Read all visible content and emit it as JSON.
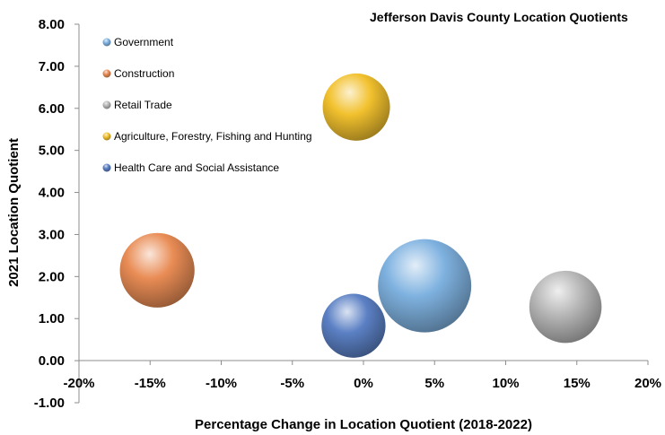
{
  "chart_data": {
    "type": "bubble",
    "title": "Jefferson Davis County Location Quotients",
    "xlabel": "Percentage Change in Location Quotient (2018-2022)",
    "ylabel": "2021 Location Quotient",
    "xlim": [
      -0.2,
      0.2
    ],
    "ylim": [
      -1.0,
      8.0
    ],
    "x_ticks": [
      "-20%",
      "-15%",
      "-10%",
      "-5%",
      "0%",
      "5%",
      "10%",
      "15%",
      "20%"
    ],
    "y_ticks": [
      "-1.00",
      "0.00",
      "1.00",
      "2.00",
      "3.00",
      "4.00",
      "5.00",
      "6.00",
      "7.00",
      "8.00"
    ],
    "grid": false,
    "legend_position": "top-left",
    "series": [
      {
        "name": "Government",
        "x": 0.043,
        "y": 1.78,
        "size": 1.0,
        "color": "#7fb2e0"
      },
      {
        "name": "Construction",
        "x": -0.145,
        "y": 2.15,
        "size": 0.64,
        "color": "#e98c55"
      },
      {
        "name": "Retail Trade",
        "x": 0.142,
        "y": 1.28,
        "size": 0.6,
        "color": "#b8b8b8"
      },
      {
        "name": "Agriculture, Forestry, Fishing and Hunting",
        "x": -0.005,
        "y": 6.03,
        "size": 0.52,
        "color": "#f2c12e"
      },
      {
        "name": "Health Care and Social Assistance",
        "x": -0.007,
        "y": 0.83,
        "size": 0.47,
        "color": "#5b80c4"
      }
    ]
  }
}
